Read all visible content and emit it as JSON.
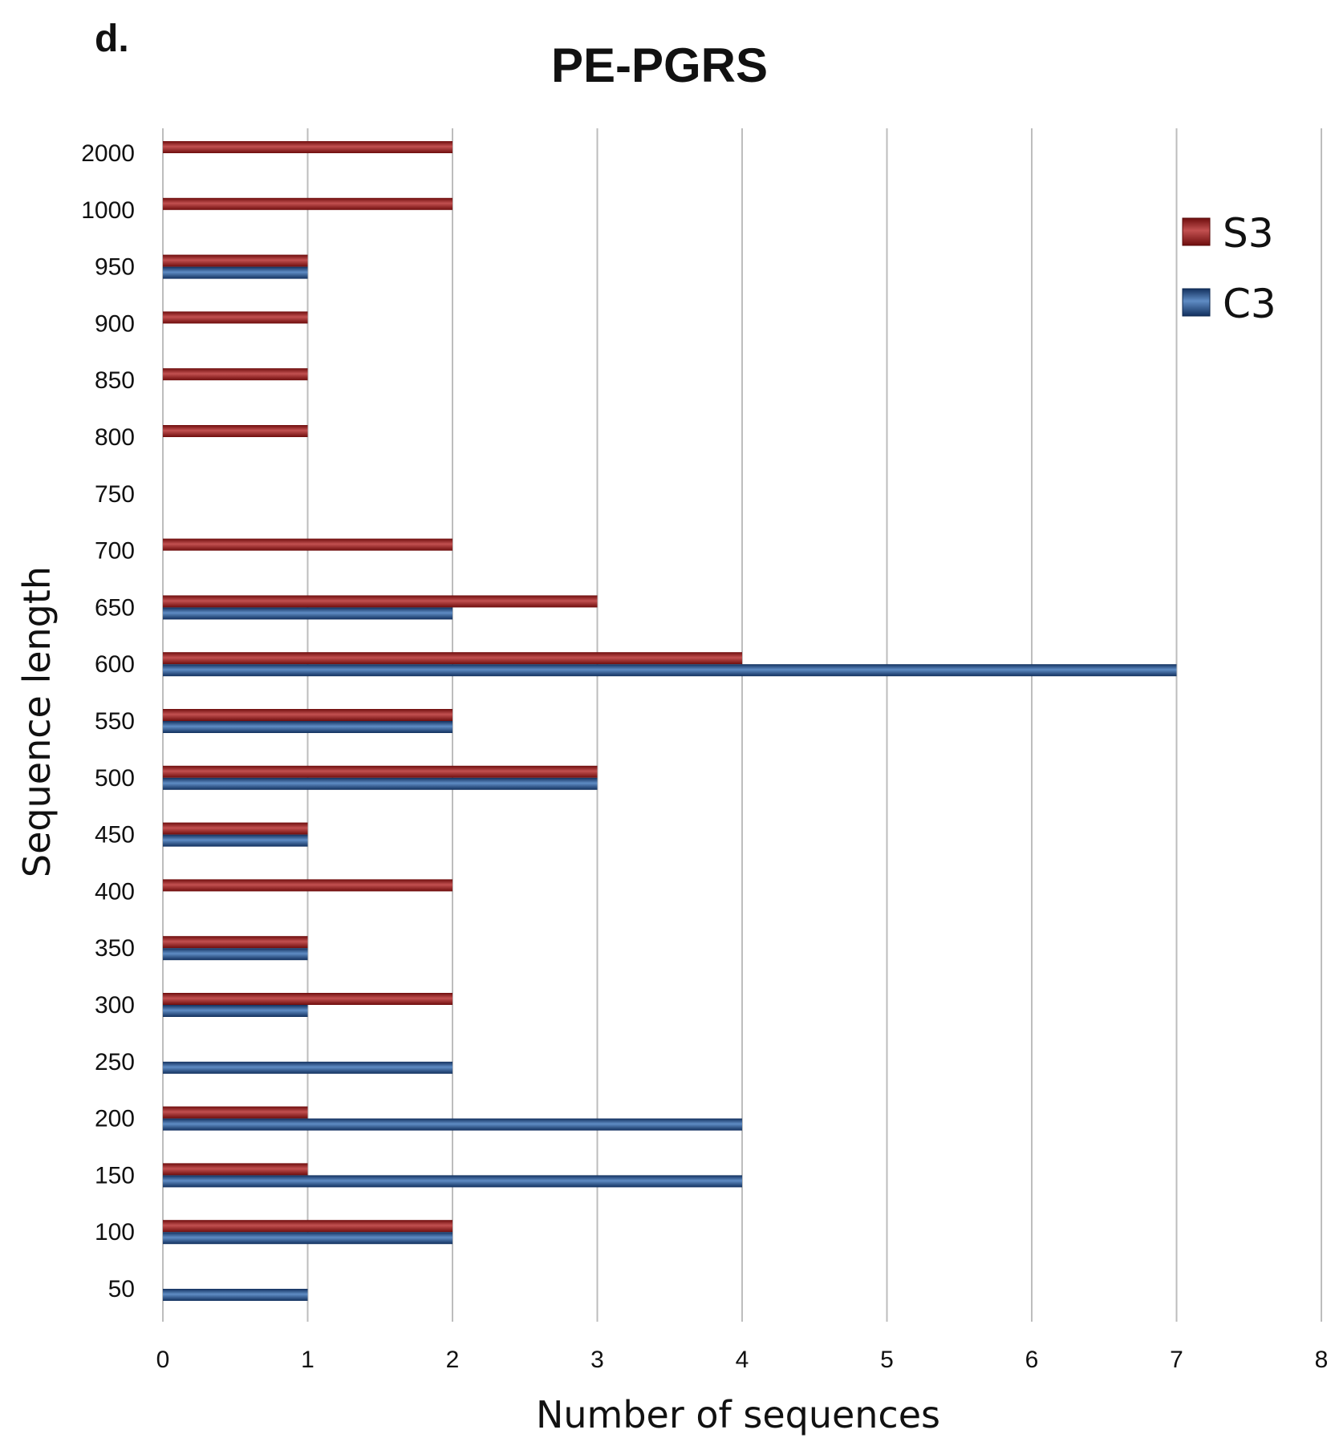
{
  "panel_label": "d.",
  "chart_data": {
    "type": "bar",
    "orientation": "horizontal",
    "title": "PE-PGRS",
    "xlabel": "Number of sequences",
    "ylabel": "Sequence length",
    "xlim": [
      0,
      8
    ],
    "xticks": [
      "0",
      "1",
      "2",
      "3",
      "4",
      "5",
      "6",
      "7",
      "8"
    ],
    "categories": [
      "50",
      "100",
      "150",
      "200",
      "250",
      "300",
      "350",
      "400",
      "450",
      "500",
      "550",
      "600",
      "650",
      "700",
      "750",
      "800",
      "850",
      "900",
      "950",
      "1000",
      "2000"
    ],
    "series": [
      {
        "name": "S3",
        "color": "#8b1a1a",
        "values": [
          0,
          2,
          1,
          1,
          0,
          2,
          1,
          2,
          1,
          3,
          2,
          4,
          3,
          2,
          0,
          1,
          1,
          1,
          1,
          2,
          2
        ]
      },
      {
        "name": "C3",
        "color": "#1f4e8c",
        "values": [
          1,
          2,
          4,
          4,
          2,
          1,
          1,
          0,
          1,
          3,
          2,
          7,
          2,
          0,
          0,
          0,
          0,
          0,
          1,
          0,
          0
        ]
      }
    ],
    "grid": "vertical",
    "legend_position": "top-right"
  }
}
